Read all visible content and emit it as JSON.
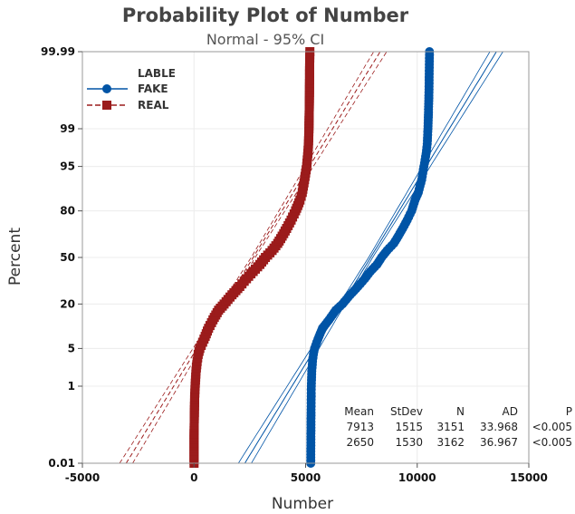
{
  "chart_data": {
    "type": "scatter",
    "title": "Probability Plot of Number",
    "subtitle": "Normal - 95% CI",
    "xlabel": "Number",
    "ylabel": "Percent",
    "xlim": [
      -5000,
      15000
    ],
    "x_ticks": [
      "-5000",
      "0",
      "5000",
      "10000",
      "15000"
    ],
    "x_tick_values": [
      -5000,
      0,
      5000,
      10000,
      15000
    ],
    "y_ticks": [
      "0.01",
      "1",
      "5",
      "20",
      "50",
      "80",
      "95",
      "99",
      "99.99"
    ],
    "y_tick_values": [
      0.01,
      1,
      5,
      20,
      50,
      80,
      95,
      99,
      99.99
    ],
    "grid": true,
    "legend_position": "top-left",
    "legend_title": "LABLE",
    "series": [
      {
        "name": "FAKE",
        "color": "#0054A6",
        "marker": "circle",
        "mean": 7913,
        "stdev": 1515,
        "fit_mean": 7913,
        "fit_stdev": 1515,
        "points": [
          [
            5230,
            0.01
          ],
          [
            5235,
            0.05
          ],
          [
            5240,
            0.15
          ],
          [
            5245,
            0.3
          ],
          [
            5250,
            0.6
          ],
          [
            5255,
            1
          ],
          [
            5275,
            2
          ],
          [
            5310,
            3
          ],
          [
            5350,
            4
          ],
          [
            5400,
            5
          ],
          [
            5550,
            7
          ],
          [
            5750,
            10
          ],
          [
            6050,
            13
          ],
          [
            6350,
            17
          ],
          [
            6650,
            20
          ],
          [
            7000,
            25
          ],
          [
            7350,
            30
          ],
          [
            7650,
            35
          ],
          [
            7900,
            40
          ],
          [
            8200,
            45
          ],
          [
            8400,
            50
          ],
          [
            8650,
            55
          ],
          [
            8950,
            60
          ],
          [
            9150,
            65
          ],
          [
            9350,
            70
          ],
          [
            9550,
            75
          ],
          [
            9750,
            80
          ],
          [
            9900,
            85
          ],
          [
            10050,
            88
          ],
          [
            10200,
            92
          ],
          [
            10300,
            95
          ],
          [
            10400,
            97
          ],
          [
            10450,
            98
          ],
          [
            10480,
            99
          ],
          [
            10500,
            99.5
          ],
          [
            10520,
            99.8
          ],
          [
            10530,
            99.9
          ],
          [
            10540,
            99.97
          ],
          [
            10550,
            99.99
          ]
        ]
      },
      {
        "name": "REAL",
        "color": "#9B1B1B",
        "marker": "square",
        "mean": 2650,
        "stdev": 1530,
        "fit_mean": 2650,
        "fit_stdev": 1530,
        "points": [
          [
            0,
            0.01
          ],
          [
            0,
            0.05
          ],
          [
            10,
            0.15
          ],
          [
            20,
            0.3
          ],
          [
            30,
            0.6
          ],
          [
            50,
            1
          ],
          [
            90,
            2
          ],
          [
            140,
            3
          ],
          [
            190,
            4
          ],
          [
            260,
            5
          ],
          [
            450,
            7
          ],
          [
            650,
            10
          ],
          [
            850,
            13
          ],
          [
            1100,
            17
          ],
          [
            1350,
            20
          ],
          [
            1700,
            25
          ],
          [
            2050,
            30
          ],
          [
            2350,
            35
          ],
          [
            2650,
            40
          ],
          [
            2950,
            45
          ],
          [
            3200,
            50
          ],
          [
            3500,
            55
          ],
          [
            3750,
            60
          ],
          [
            3950,
            65
          ],
          [
            4150,
            70
          ],
          [
            4350,
            75
          ],
          [
            4550,
            80
          ],
          [
            4750,
            85
          ],
          [
            4850,
            88
          ],
          [
            4950,
            92
          ],
          [
            5050,
            95
          ],
          [
            5100,
            97
          ],
          [
            5130,
            98
          ],
          [
            5150,
            99
          ],
          [
            5160,
            99.5
          ],
          [
            5170,
            99.8
          ],
          [
            5175,
            99.9
          ],
          [
            5180,
            99.97
          ],
          [
            5190,
            99.99
          ]
        ]
      }
    ],
    "stats_table": {
      "headers": [
        "Mean",
        "StDev",
        "N",
        "AD",
        "P"
      ],
      "rows": [
        [
          "7913",
          "1515",
          "3151",
          "33.968",
          "<0.005"
        ],
        [
          "2650",
          "1530",
          "3162",
          "36.967",
          "<0.005"
        ]
      ]
    }
  }
}
